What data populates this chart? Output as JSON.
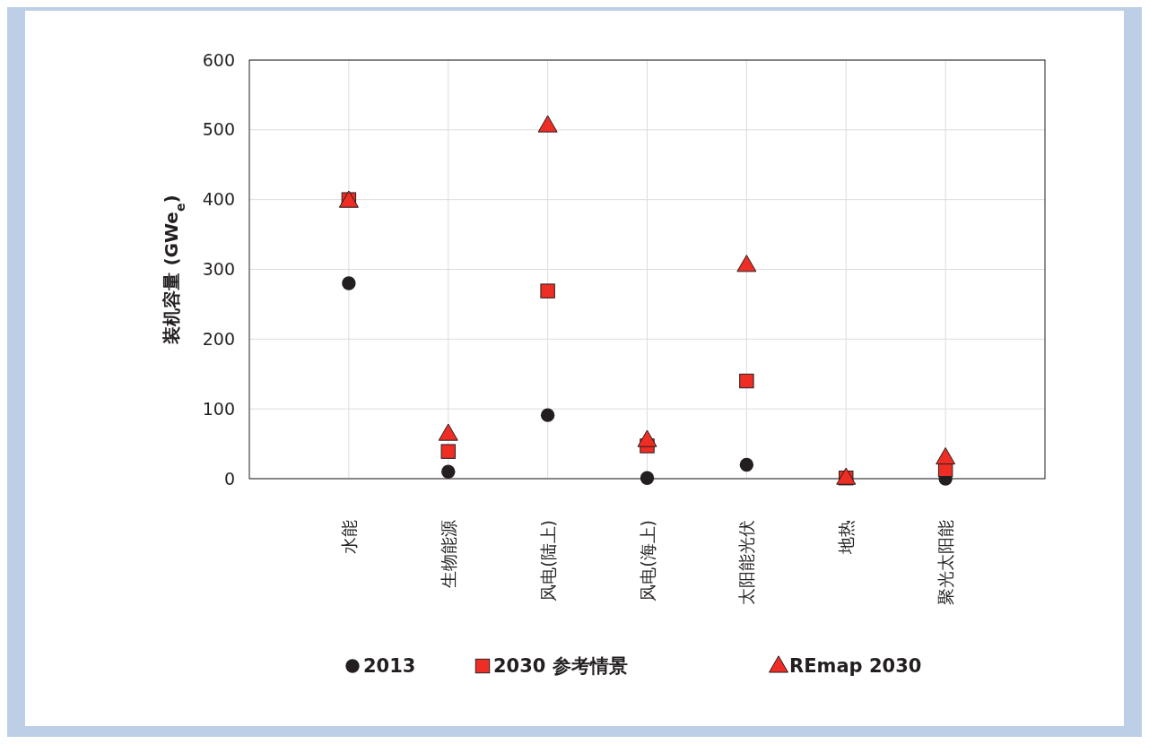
{
  "chart_data": {
    "type": "scatter",
    "ylabel": "装机容量 (GWe$_{e}$)",
    "categories": [
      "水能",
      "生物能源",
      "风电(陆上)",
      "风电(海上)",
      "太阳能光伏",
      "地热",
      "聚光太阳能"
    ],
    "series": [
      {
        "name": "2013",
        "color": "#231f20",
        "marker": "circle",
        "values": [
          280,
          10,
          91,
          1,
          20,
          null,
          0
        ]
      },
      {
        "name": "2030 参考情景",
        "color": "#ee2d24",
        "marker": "square",
        "values": [
          400,
          39,
          269,
          47,
          140,
          1,
          13
        ]
      },
      {
        "name": "REmap 2030",
        "color": "#ee2d24",
        "marker": "triangle",
        "values": [
          398,
          64,
          506,
          55,
          306,
          1,
          30
        ]
      }
    ],
    "ylim": [
      0,
      600
    ],
    "yticks": [
      0,
      100,
      200,
      300,
      400,
      500,
      600
    ],
    "grid": true,
    "legend": "bottom"
  }
}
